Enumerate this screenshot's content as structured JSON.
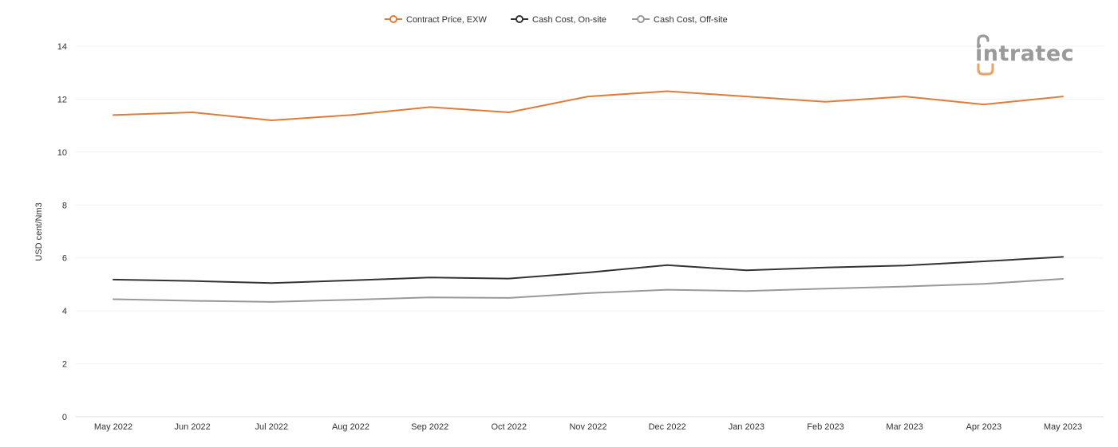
{
  "logo": {
    "text": "intratec",
    "accent_color": "#e8a76a",
    "text_color": "#9a9a9a"
  },
  "chart_data": {
    "type": "line",
    "ylabel": "USD cent/Nm3",
    "xlabel": "",
    "ylim": [
      0,
      14
    ],
    "yticks": [
      0,
      2,
      4,
      6,
      8,
      10,
      12,
      14
    ],
    "grid": true,
    "legend_position": "top-center",
    "categories": [
      "May 2022",
      "Jun 2022",
      "Jul 2022",
      "Aug 2022",
      "Sep 2022",
      "Oct 2022",
      "Nov 2022",
      "Dec 2022",
      "Jan 2023",
      "Feb 2023",
      "Mar 2023",
      "Apr 2023",
      "May 2023"
    ],
    "series": [
      {
        "name": "Contract Price, EXW",
        "color": "#e07b39",
        "values": [
          11.4,
          11.5,
          11.2,
          11.4,
          11.7,
          11.5,
          12.1,
          12.3,
          12.1,
          11.9,
          12.1,
          11.8,
          12.1
        ]
      },
      {
        "name": "Cash Cost, On-site",
        "color": "#333333",
        "values": [
          5.18,
          5.13,
          5.05,
          5.15,
          5.26,
          5.22,
          5.45,
          5.73,
          5.53,
          5.64,
          5.71,
          5.87,
          6.04
        ]
      },
      {
        "name": "Cash Cost, Off-site",
        "color": "#999999",
        "values": [
          4.44,
          4.38,
          4.34,
          4.42,
          4.51,
          4.49,
          4.67,
          4.8,
          4.75,
          4.84,
          4.92,
          5.02,
          5.21
        ]
      }
    ]
  }
}
